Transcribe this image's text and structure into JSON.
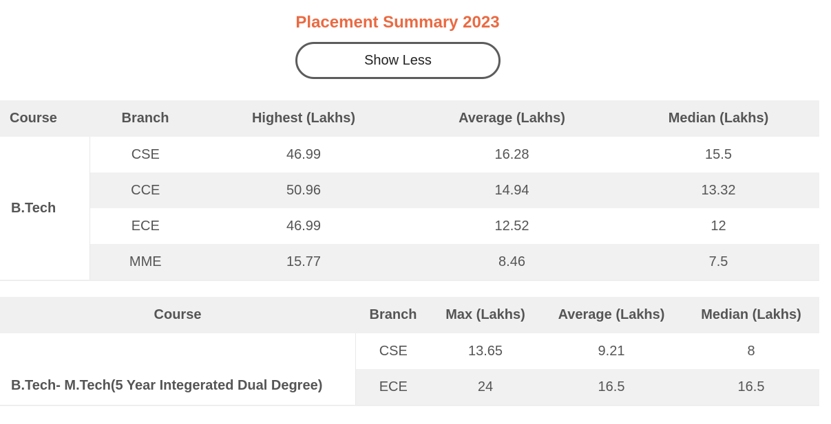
{
  "title": "Placement Summary 2023",
  "toggle_label": "Show Less",
  "btech_table": {
    "headers": [
      "Course",
      "Branch",
      "Highest (Lakhs)",
      "Average (Lakhs)",
      "Median (Lakhs)"
    ],
    "course": "B.Tech",
    "rows": [
      {
        "branch": "CSE",
        "highest": "46.99",
        "average": "16.28",
        "median": "15.5"
      },
      {
        "branch": "CCE",
        "highest": "50.96",
        "average": "14.94",
        "median": "13.32"
      },
      {
        "branch": "ECE",
        "highest": "46.99",
        "average": "12.52",
        "median": "12"
      },
      {
        "branch": "MME",
        "highest": "15.77",
        "average": "8.46",
        "median": "7.5"
      }
    ]
  },
  "dual_table": {
    "headers": [
      "Course",
      "Branch",
      "Max (Lakhs)",
      "Average (Lakhs)",
      "Median (Lakhs)"
    ],
    "course": "B.Tech- M.Tech(5 Year Integerated Dual Degree)",
    "rows": [
      {
        "branch": "CSE",
        "max": "13.65",
        "average": "9.21",
        "median": "8"
      },
      {
        "branch": "ECE",
        "max": "24",
        "average": "16.5",
        "median": "16.5"
      }
    ]
  }
}
